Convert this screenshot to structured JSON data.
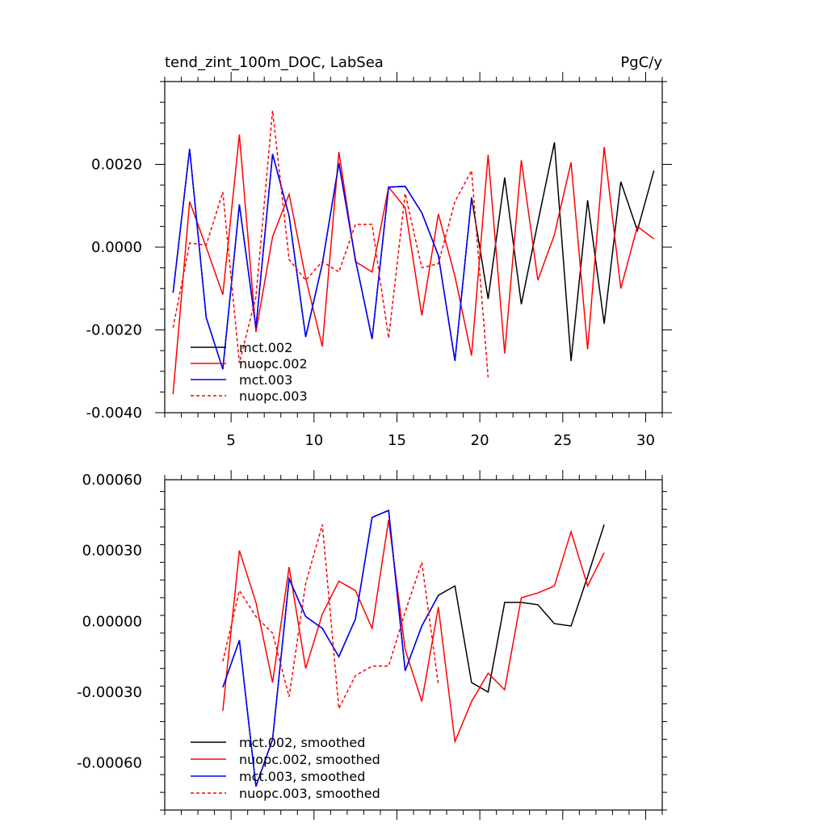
{
  "chart_data": [
    {
      "type": "line",
      "title": "tend_zint_100m_DOC, LabSea",
      "units": "PgC/y",
      "xlabel": "",
      "ylabel": "",
      "xlim": [
        1,
        31
      ],
      "ylim": [
        -0.004,
        0.004
      ],
      "x_ticks": [
        5,
        10,
        15,
        20,
        25,
        30
      ],
      "x_tick_labels": [
        "5",
        "10",
        "15",
        "20",
        "25",
        "30"
      ],
      "y_ticks": [
        -0.004,
        -0.002,
        0.0,
        0.002
      ],
      "y_tick_labels": [
        "-0.0040",
        "-0.0020",
        "0.0000",
        "0.0020"
      ],
      "legend_position": "bottom-left",
      "series": [
        {
          "name": "mct.002",
          "color": "#000000",
          "dash": false,
          "x": [
            1.5,
            2.5,
            3.5,
            4.5,
            5.5,
            6.5,
            7.5,
            8.5,
            9.5,
            10.5,
            11.5,
            12.5,
            13.5,
            14.5,
            15.5,
            16.5,
            17.5,
            18.5,
            19.5,
            20.5,
            21.5,
            22.5,
            23.5,
            24.5,
            25.5,
            26.5,
            27.5,
            28.5,
            29.5,
            30.5
          ],
          "y": [
            -0.0011,
            0.00237,
            -0.0017,
            -0.00295,
            0.00103,
            -0.00195,
            0.00225,
            0.00075,
            -0.00217,
            -0.0004,
            0.00203,
            -0.0003,
            -0.00222,
            0.00145,
            0.00147,
            0.00083,
            -0.0002,
            -0.00275,
            0.0012,
            -0.00125,
            0.00168,
            -0.00138,
            0.0006,
            0.00253,
            -0.00275,
            0.00113,
            -0.00185,
            0.00158,
            0.0004,
            0.00185
          ]
        },
        {
          "name": "nuopc.002",
          "color": "#ff0000",
          "dash": false,
          "x": [
            1.5,
            2.5,
            3.5,
            4.5,
            5.5,
            6.5,
            7.5,
            8.5,
            9.5,
            10.5,
            11.5,
            12.5,
            13.5,
            14.5,
            15.5,
            16.5,
            17.5,
            18.5,
            19.5,
            20.5,
            21.5,
            22.5,
            23.5,
            24.5,
            25.5,
            26.5,
            27.5,
            28.5,
            29.5,
            30.5
          ],
          "y": [
            -0.00355,
            0.0011,
            0.0,
            -0.00115,
            0.00272,
            -0.00205,
            0.00025,
            0.00128,
            -0.00075,
            -0.0024,
            0.0023,
            -0.00035,
            -0.0006,
            0.00145,
            0.00095,
            -0.00165,
            0.0008,
            -0.0007,
            -0.00262,
            0.00223,
            -0.00257,
            0.0021,
            -0.0008,
            0.0003,
            0.00205,
            -0.00247,
            0.00242,
            -0.001,
            0.0005,
            0.0002
          ]
        },
        {
          "name": "mct.003",
          "color": "#0000ff",
          "dash": false,
          "x": [
            1.5,
            2.5,
            3.5,
            4.5,
            5.5,
            6.5,
            7.5,
            8.5,
            9.5,
            10.5,
            11.5,
            12.5,
            13.5,
            14.5,
            15.5,
            16.5,
            17.5,
            18.5,
            19.5
          ],
          "y": [
            -0.0011,
            0.00237,
            -0.0017,
            -0.00295,
            0.00103,
            -0.00195,
            0.00225,
            0.00075,
            -0.00217,
            -0.0004,
            0.00203,
            -0.0003,
            -0.00222,
            0.00145,
            0.00147,
            0.00083,
            -0.0002,
            -0.00275,
            0.0012
          ]
        },
        {
          "name": "nuopc.003",
          "color": "#ff0000",
          "dash": true,
          "x": [
            1.5,
            2.5,
            3.5,
            4.5,
            5.5,
            6.5,
            7.5,
            8.5,
            9.5,
            10.5,
            11.5,
            12.5,
            13.5,
            14.5,
            15.5,
            16.5,
            17.5,
            18.5,
            19.5,
            20.5
          ],
          "y": [
            -0.00195,
            0.0001,
            5e-05,
            0.00133,
            -0.0028,
            -0.0012,
            0.0033,
            -0.0003,
            -0.0008,
            -0.00035,
            -0.0006,
            0.00055,
            0.00055,
            -0.0022,
            0.0013,
            -0.0005,
            -0.0004,
            0.0011,
            0.00185,
            -0.00315
          ]
        }
      ]
    },
    {
      "type": "line",
      "title": "",
      "xlabel": "",
      "ylabel": "",
      "xlim": [
        1,
        31
      ],
      "ylim": [
        -0.0008,
        0.0006
      ],
      "x_ticks": [
        5,
        10,
        15,
        20,
        25,
        30
      ],
      "x_tick_labels": [],
      "y_ticks": [
        -0.0006,
        -0.0003,
        0.0,
        0.0003,
        0.0006
      ],
      "y_tick_labels": [
        "-0.00060",
        "-0.00030",
        "0.00000",
        "0.00030",
        "0.00060"
      ],
      "legend_position": "bottom-left",
      "series": [
        {
          "name": "mct.002, smoothed",
          "color": "#000000",
          "dash": false,
          "x": [
            4.5,
            5.5,
            6.5,
            7.5,
            8.5,
            9.5,
            10.5,
            11.5,
            12.5,
            13.5,
            14.5,
            15.5,
            16.5,
            17.5,
            18.5,
            19.5,
            20.5,
            21.5,
            22.5,
            23.5,
            24.5,
            25.5,
            26.5,
            27.5
          ],
          "y": [
            -0.00028,
            -8e-05,
            -0.0007,
            -0.0005,
            0.00018,
            2e-05,
            -3e-05,
            -0.00015,
            1e-05,
            0.00044,
            0.00047,
            -0.00021,
            -2e-05,
            0.00011,
            0.00015,
            -0.00026,
            -0.0003,
            8e-05,
            8e-05,
            7e-05,
            -1e-05,
            -2e-05,
            0.00019,
            0.00041
          ]
        },
        {
          "name": "nuopc.002, smoothed",
          "color": "#ff0000",
          "dash": false,
          "x": [
            4.5,
            5.5,
            6.5,
            7.5,
            8.5,
            9.5,
            10.5,
            11.5,
            12.5,
            13.5,
            14.5,
            15.5,
            16.5,
            17.5,
            18.5,
            19.5,
            20.5,
            21.5,
            22.5,
            23.5,
            24.5,
            25.5,
            26.5,
            27.5
          ],
          "y": [
            -0.00038,
            0.0003,
            8e-05,
            -0.00026,
            0.00023,
            -0.0002,
            3e-05,
            0.00017,
            0.00013,
            -3e-05,
            0.00043,
            -0.00012,
            -0.00034,
            6e-05,
            -0.00051,
            -0.00034,
            -0.00022,
            -0.00029,
            0.0001,
            0.00012,
            0.00015,
            0.00038,
            0.00015,
            0.00029
          ]
        },
        {
          "name": "mct.003, smoothed",
          "color": "#0000ff",
          "dash": false,
          "x": [
            4.5,
            5.5,
            6.5,
            7.5,
            8.5,
            9.5,
            10.5,
            11.5,
            12.5,
            13.5,
            14.5,
            15.5,
            16.5,
            17.5
          ],
          "y": [
            -0.00028,
            -8e-05,
            -0.0007,
            -0.0005,
            0.00018,
            2e-05,
            -3e-05,
            -0.00015,
            1e-05,
            0.00044,
            0.00047,
            -0.00021,
            -2e-05,
            0.00011
          ]
        },
        {
          "name": "nuopc.003, smoothed",
          "color": "#ff0000",
          "dash": true,
          "x": [
            4.5,
            5.5,
            6.5,
            7.5,
            8.5,
            9.5,
            10.5,
            11.5,
            12.5,
            13.5,
            14.5,
            15.5,
            16.5,
            17.5
          ],
          "y": [
            -0.00017,
            0.00013,
            2e-05,
            -5e-05,
            -0.00032,
            0.00016,
            0.00041,
            -0.00037,
            -0.00023,
            -0.00019,
            -0.00019,
            4e-05,
            0.00025,
            -0.00027
          ]
        }
      ]
    }
  ]
}
